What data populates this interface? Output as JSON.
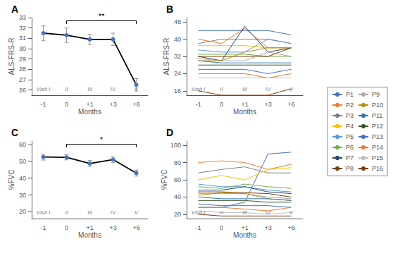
{
  "chart_data": [
    {
      "type": "line",
      "title": "A",
      "categories": [
        "-1",
        "0",
        "+1",
        "+3",
        "+6"
      ],
      "xlabel": "Months",
      "ylabel": "ALS-FRS-R",
      "ylim": [
        25.5,
        33
      ],
      "yticks": [
        26,
        27,
        28,
        29,
        30,
        31,
        32,
        33
      ],
      "grid": false,
      "series": [
        {
          "color": "black",
          "colors": [
            "#4472C4",
            "#4472C4",
            "#4472C4",
            "#4472C4",
            "#4472C4"
          ],
          "marker": "circle",
          "values": [
            31.5,
            31.3,
            30.9,
            30.9,
            26.5
          ],
          "errors": [
            0.7,
            0.7,
            0.5,
            0.6,
            0.6
          ]
        }
      ],
      "annotations": [
        {
          "text": "**",
          "x": [
            "0",
            "+6"
          ]
        },
        {
          "text": "Visit I",
          "x": "-1"
        },
        {
          "text": "II",
          "x": "0"
        },
        {
          "text": "III",
          "x": "+1"
        },
        {
          "text": "IV",
          "x": "+3"
        },
        {
          "text": "V",
          "x": "+6"
        }
      ]
    },
    {
      "type": "line",
      "title": "B",
      "categories": [
        "-1",
        "0",
        "+1",
        "+3",
        "+6"
      ],
      "xlabel": "Months",
      "ylabel": "ALS-FRS-R",
      "ylim": [
        14,
        50
      ],
      "yticks": [
        16,
        24,
        32,
        40,
        48
      ],
      "grid": false,
      "legend": "right",
      "series": [
        {
          "name": "P1",
          "color": "#4472C4",
          "values": [
            44,
            44,
            44,
            44,
            42
          ]
        },
        {
          "name": "P2",
          "color": "#ED7D31",
          "values": [
            40,
            38,
            45,
            36,
            36
          ]
        },
        {
          "name": "P3",
          "color": "#808080",
          "values": [
            38,
            40,
            40,
            40,
            38
          ]
        },
        {
          "name": "P4",
          "color": "#FFC000",
          "values": [
            37,
            37,
            37,
            36,
            36
          ]
        },
        {
          "name": "P5",
          "color": "#5B9BD5",
          "values": [
            35,
            34,
            34,
            40,
            38
          ]
        },
        {
          "name": "P6",
          "color": "#70AD47",
          "values": [
            33,
            33,
            33,
            32,
            32
          ]
        },
        {
          "name": "P7",
          "color": "#264478",
          "values": [
            32,
            30,
            46,
            34,
            36
          ]
        },
        {
          "name": "P8",
          "color": "#7B3F00",
          "values": [
            32,
            32,
            32,
            32,
            36
          ]
        },
        {
          "name": "P9",
          "color": "#A9A9A9",
          "values": [
            31,
            30,
            30,
            34,
            32
          ]
        },
        {
          "name": "P10",
          "color": "#BF8F00",
          "values": [
            30,
            30,
            34,
            36,
            36
          ]
        },
        {
          "name": "P11",
          "color": "#2E75B6",
          "values": [
            30,
            29,
            29,
            29,
            29
          ]
        },
        {
          "name": "P12",
          "color": "#375623",
          "values": [
            28,
            28,
            28,
            28,
            28
          ]
        },
        {
          "name": "P13",
          "color": "#4472C4",
          "values": [
            26,
            26,
            26,
            24,
            26
          ]
        },
        {
          "name": "P14",
          "color": "#ED7D31",
          "values": [
            24,
            24,
            24,
            22,
            24
          ]
        },
        {
          "name": "P15",
          "color": "#BFBFBF",
          "values": [
            22,
            22,
            22,
            22,
            22
          ]
        },
        {
          "name": "P16",
          "color": "#833C00",
          "values": [
            16,
            14,
            14,
            14,
            17
          ]
        }
      ],
      "annotations": [
        {
          "text": "Visit I",
          "x": "-1"
        },
        {
          "text": "II",
          "x": "0"
        },
        {
          "text": "III",
          "x": "+1"
        },
        {
          "text": "IV",
          "x": "+3"
        },
        {
          "text": "V",
          "x": "+6"
        }
      ]
    },
    {
      "type": "line",
      "title": "C",
      "categories": [
        "-1",
        "0",
        "+1",
        "+3",
        "+6"
      ],
      "xlabel": "Months",
      "ylabel": "%FVC",
      "ylim": [
        16,
        62
      ],
      "yticks": [
        20,
        30,
        40,
        50,
        60
      ],
      "grid": false,
      "series": [
        {
          "color": "black",
          "colors": [
            "#4472C4",
            "#4472C4",
            "#4472C4",
            "#4472C4",
            "#4472C4"
          ],
          "marker": "circle",
          "values": [
            52.5,
            52.3,
            48.7,
            51.0,
            43.0
          ],
          "errors": [
            1.8,
            1.5,
            1.8,
            1.8,
            1.8
          ]
        }
      ],
      "annotations": [
        {
          "text": "*",
          "x": [
            "0",
            "+6"
          ]
        },
        {
          "text": "Visit I",
          "x": "-1"
        },
        {
          "text": "II",
          "x": "0"
        },
        {
          "text": "III",
          "x": "+1"
        },
        {
          "text": "IV",
          "x": "+3"
        },
        {
          "text": "V",
          "x": "+6"
        }
      ]
    },
    {
      "type": "line",
      "title": "D",
      "categories": [
        "-1",
        "0",
        "+1",
        "+3",
        "+6"
      ],
      "xlabel": "Months",
      "ylabel": "%FVC",
      "ylim": [
        15,
        105
      ],
      "yticks": [
        20,
        40,
        60,
        80,
        100
      ],
      "grid": false,
      "legend": "right",
      "series": [
        {
          "name": "P1",
          "color": "#4472C4",
          "values": [
            28,
            28,
            34,
            90,
            92
          ]
        },
        {
          "name": "P2",
          "color": "#ED7D31",
          "values": [
            80,
            82,
            80,
            72,
            78
          ]
        },
        {
          "name": "P3",
          "color": "#808080",
          "values": [
            68,
            72,
            75,
            68,
            68
          ]
        },
        {
          "name": "P4",
          "color": "#FFC000",
          "values": [
            60,
            65,
            60,
            72,
            74
          ]
        },
        {
          "name": "P5",
          "color": "#5B9BD5",
          "values": [
            55,
            52,
            52,
            48,
            46
          ]
        },
        {
          "name": "P6",
          "color": "#70AD47",
          "values": [
            52,
            50,
            55,
            52,
            50
          ]
        },
        {
          "name": "P7",
          "color": "#264478",
          "values": [
            48,
            48,
            52,
            46,
            44
          ]
        },
        {
          "name": "P8",
          "color": "#7B3F00",
          "values": [
            46,
            46,
            45,
            44,
            40
          ]
        },
        {
          "name": "P9",
          "color": "#A9A9A9",
          "values": [
            44,
            44,
            44,
            40,
            38
          ]
        },
        {
          "name": "P10",
          "color": "#BF8F00",
          "values": [
            42,
            45,
            44,
            38,
            36
          ]
        },
        {
          "name": "P11",
          "color": "#2E75B6",
          "values": [
            40,
            38,
            38,
            38,
            36
          ]
        },
        {
          "name": "P12",
          "color": "#375623",
          "values": [
            36,
            36,
            36,
            34,
            34
          ]
        },
        {
          "name": "P13",
          "color": "#4472C4",
          "values": [
            32,
            30,
            30,
            30,
            28
          ]
        },
        {
          "name": "P14",
          "color": "#ED7D31",
          "values": [
            28,
            28,
            26,
            24,
            28
          ]
        },
        {
          "name": "P15",
          "color": "#BFBFBF",
          "values": [
            24,
            22,
            22,
            20,
            22
          ]
        },
        {
          "name": "P16",
          "color": "#833C00",
          "values": [
            20,
            18,
            18,
            18,
            18
          ]
        }
      ],
      "annotations": [
        {
          "text": "Visit I",
          "x": "-1"
        },
        {
          "text": "II",
          "x": "0"
        },
        {
          "text": "III",
          "x": "+1"
        },
        {
          "text": "IV",
          "x": "+3"
        },
        {
          "text": "V",
          "x": "+6"
        }
      ]
    }
  ]
}
